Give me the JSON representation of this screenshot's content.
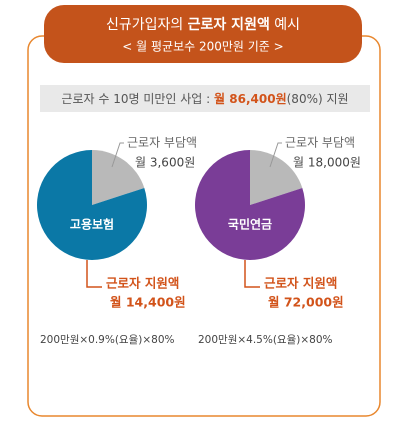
{
  "header": {
    "title_parts": [
      "신규가입자의",
      "근로자 지원액",
      "예시"
    ],
    "subtitle": "< 월 평균보수 200만원 기준 >"
  },
  "banner": {
    "parts": [
      "근로자 수 10명 미만인 사업 :",
      "월 86,400원",
      "(80%) 지원"
    ]
  },
  "chart_data": [
    {
      "type": "pie",
      "title": "고용보험",
      "note": "200만원×0.9%(요율)×80%",
      "series": [
        {
          "name": "근로자 부담액",
          "color": "#b9b9b9",
          "values": [
            3600
          ],
          "value_labels": [
            "월 3,600원"
          ]
        },
        {
          "name": "근로자 지원액",
          "color": "#0b78a6",
          "values": [
            14400
          ],
          "value_labels": [
            "월 14,400원"
          ]
        }
      ]
    },
    {
      "type": "pie",
      "title": "국민연금",
      "note": "200만원×4.5%(요율)×80%",
      "series": [
        {
          "name": "근로자 부담액",
          "color": "#b9b9b9",
          "values": [
            18000
          ],
          "value_labels": [
            "월 18,000원"
          ]
        },
        {
          "name": "근로자 지원액",
          "color": "#7a3d97",
          "values": [
            72000
          ],
          "value_labels": [
            "월 72,000원"
          ]
        }
      ]
    }
  ]
}
